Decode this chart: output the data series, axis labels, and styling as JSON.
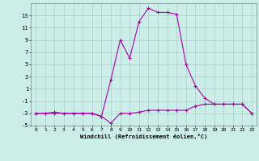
{
  "xlabel": "Windchill (Refroidissement éolien,°C)",
  "x": [
    0,
    1,
    2,
    3,
    4,
    5,
    6,
    7,
    8,
    9,
    10,
    11,
    12,
    13,
    14,
    15,
    16,
    17,
    18,
    19,
    20,
    21,
    22,
    23
  ],
  "line1": [
    -3,
    -3,
    -2.8,
    -3,
    -3,
    -3,
    -3,
    -3.5,
    -4.6,
    -3,
    -3,
    -2.8,
    -2.5,
    -2.5,
    -2.5,
    -2.5,
    -2.5,
    -1.8,
    -1.5,
    -1.5,
    -1.5,
    -1.5,
    -1.5,
    -3
  ],
  "line2": [
    -3,
    -3,
    -3,
    -3,
    -3,
    -3,
    -3,
    -3.5,
    2.5,
    9,
    6,
    12,
    14.2,
    13.5,
    13.5,
    13.2,
    5,
    1.5,
    -0.5,
    -1.5,
    -1.5,
    -1.5,
    -1.5,
    -3
  ],
  "ylim": [
    -5,
    15
  ],
  "yticks": [
    -5,
    -3,
    -1,
    1,
    3,
    5,
    7,
    9,
    11,
    13
  ],
  "ytick_labels": [
    "-5",
    "-3",
    "-1",
    "1",
    "3",
    "5",
    "7",
    "9",
    "11",
    "13"
  ],
  "xticks": [
    0,
    1,
    2,
    3,
    4,
    5,
    6,
    7,
    8,
    9,
    10,
    11,
    12,
    13,
    14,
    15,
    16,
    17,
    18,
    19,
    20,
    21,
    22,
    23
  ],
  "bg_color": "#cceee8",
  "grid_color": "#aacccc",
  "line_color": "#aa00aa",
  "markersize": 3,
  "linewidth": 0.8
}
